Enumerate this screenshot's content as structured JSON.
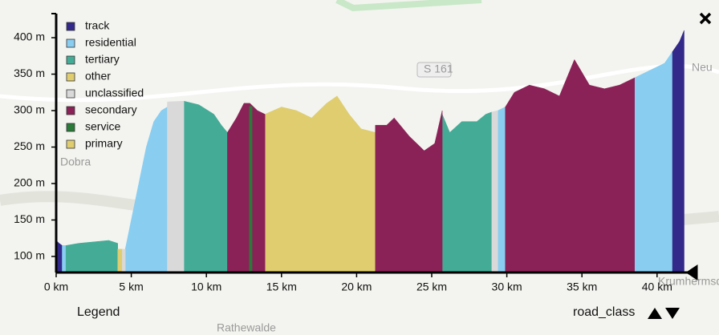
{
  "chart_data": {
    "type": "area",
    "xlim": [
      0,
      41.8
    ],
    "ylim": [
      78,
      433
    ],
    "xticks": [
      {
        "value": 0,
        "label": "0 km"
      },
      {
        "value": 5,
        "label": "5 km"
      },
      {
        "value": 10,
        "label": "10 km"
      },
      {
        "value": 15,
        "label": "15 km"
      },
      {
        "value": 20,
        "label": "20 km"
      },
      {
        "value": 25,
        "label": "25 km"
      },
      {
        "value": 30,
        "label": "30 km"
      },
      {
        "value": 35,
        "label": "35 km"
      },
      {
        "value": 40,
        "label": "40 km"
      }
    ],
    "yticks": [
      {
        "value": 100,
        "label": "100 m"
      },
      {
        "value": 150,
        "label": "150 m"
      },
      {
        "value": 200,
        "label": "200 m"
      },
      {
        "value": 250,
        "label": "250 m"
      },
      {
        "value": 300,
        "label": "300 m"
      },
      {
        "value": 350,
        "label": "350 m"
      },
      {
        "value": 400,
        "label": "400 m"
      }
    ],
    "legend": "top-left",
    "series": [
      {
        "name": "track",
        "color": "#32298a",
        "x": [
          0,
          0.2,
          0.4,
          null,
          41,
          41.5,
          41.8
        ],
        "values": [
          122,
          118,
          115,
          null,
          380,
          395,
          410
        ]
      },
      {
        "name": "residential",
        "color": "#89cdf0",
        "x": [
          0.4,
          0.65,
          null,
          4.6,
          5.0,
          5.5,
          6.0,
          6.5,
          7.0,
          7.4,
          null,
          29.4,
          29.9,
          null,
          38.5,
          39.5,
          40.5,
          41
        ],
        "values": [
          115,
          115,
          null,
          110,
          150,
          200,
          250,
          285,
          300,
          305,
          null,
          300,
          305,
          null,
          345,
          355,
          365,
          380
        ]
      },
      {
        "name": "tertiary",
        "color": "#44ab97",
        "x": [
          0.65,
          1.5,
          2.5,
          3.5,
          4.1,
          null,
          8.5,
          9.5,
          10.5,
          11.0,
          11.4,
          null,
          25.7,
          26.2,
          27,
          28,
          28.6,
          29.0
        ],
        "values": [
          115,
          118,
          120,
          122,
          118,
          null,
          313,
          308,
          295,
          280,
          270,
          null,
          295,
          270,
          285,
          285,
          295,
          298
        ]
      },
      {
        "name": "other",
        "color": "#dfcd70",
        "x": [
          4.1,
          4.4,
          null,
          13.9,
          15,
          16,
          17,
          18,
          18.7,
          19.5,
          20.3,
          21.25
        ],
        "values": [
          110,
          110,
          null,
          295,
          305,
          300,
          290,
          310,
          320,
          295,
          275,
          270
        ]
      },
      {
        "name": "unclassified",
        "color": "#d9d9d9",
        "x": [
          4.4,
          4.6,
          null,
          7.4,
          8.5,
          null,
          29.0,
          29.4
        ],
        "values": [
          110,
          110,
          null,
          312,
          313,
          null,
          298,
          300
        ]
      },
      {
        "name": "secondary",
        "color": "#8b2257",
        "x": [
          11.4,
          12.0,
          12.5,
          12.9,
          13.4,
          13.9,
          null,
          21.25,
          22,
          22.5,
          23.5,
          24.5,
          25.2,
          25.7,
          null,
          29.9,
          30.5,
          31.5,
          32.5,
          33.5,
          34.5,
          35.5,
          36.5,
          37.5,
          38.5
        ],
        "values": [
          270,
          290,
          310,
          310,
          300,
          295,
          null,
          280,
          280,
          290,
          265,
          245,
          255,
          300,
          null,
          305,
          325,
          335,
          330,
          320,
          370,
          335,
          330,
          335,
          345
        ]
      },
      {
        "name": "service",
        "color": "#2a7a3a",
        "x": [
          12.9,
          13.0
        ],
        "values": [
          305,
          305
        ]
      },
      {
        "name": "primary",
        "color": "#dfcd70",
        "x": [],
        "values": []
      }
    ]
  },
  "controls": {
    "legend_button": "Legend",
    "sort_label": "road_class"
  },
  "map_labels": [
    "Dobra",
    "S 161",
    "Rathewalde",
    "Krumhermsdorf",
    "Neu"
  ]
}
